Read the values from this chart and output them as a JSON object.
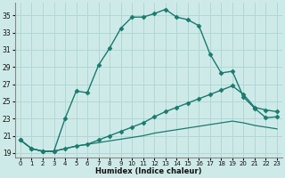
{
  "title": "",
  "xlabel": "Humidex (Indice chaleur)",
  "ylabel": "",
  "bg_color": "#ceeae8",
  "grid_color": "#b0d8d5",
  "line_color": "#1a7a6e",
  "xlim": [
    -0.5,
    23.5
  ],
  "ylim": [
    18.5,
    36.5
  ],
  "xticks": [
    0,
    1,
    2,
    3,
    4,
    5,
    6,
    7,
    8,
    9,
    10,
    11,
    12,
    13,
    14,
    15,
    16,
    17,
    18,
    19,
    20,
    21,
    22,
    23
  ],
  "yticks": [
    19,
    21,
    23,
    25,
    27,
    29,
    31,
    33,
    35
  ],
  "series": [
    {
      "x": [
        0,
        1,
        2,
        3,
        4,
        5,
        6,
        7,
        8,
        9,
        10,
        11,
        12,
        13,
        14,
        15,
        16,
        17,
        18,
        19,
        20,
        21,
        22,
        23
      ],
      "y": [
        20.5,
        19.5,
        19.2,
        19.2,
        23.0,
        26.2,
        26.0,
        29.2,
        31.2,
        33.5,
        34.8,
        34.8,
        35.2,
        35.7,
        34.8,
        34.5,
        33.8,
        30.5,
        28.3,
        28.5,
        25.5,
        24.2,
        23.1,
        23.2
      ],
      "marker": "D",
      "markersize": 2.5,
      "linewidth": 1.0
    },
    {
      "x": [
        0,
        1,
        2,
        3,
        4,
        5,
        6,
        7,
        8,
        9,
        10,
        11,
        12,
        13,
        14,
        15,
        16,
        17,
        18,
        19,
        20,
        21,
        22,
        23
      ],
      "y": [
        20.5,
        19.5,
        19.2,
        19.2,
        19.5,
        19.8,
        20.0,
        20.5,
        21.0,
        21.5,
        22.0,
        22.5,
        23.2,
        23.8,
        24.3,
        24.8,
        25.3,
        25.8,
        26.3,
        26.8,
        25.8,
        24.3,
        24.0,
        23.8
      ],
      "marker": "D",
      "markersize": 2.5,
      "linewidth": 1.0
    },
    {
      "x": [
        0,
        1,
        2,
        3,
        4,
        5,
        6,
        7,
        8,
        9,
        10,
        11,
        12,
        13,
        14,
        15,
        16,
        17,
        18,
        19,
        20,
        21,
        22,
        23
      ],
      "y": [
        20.5,
        19.5,
        19.2,
        19.2,
        19.5,
        19.8,
        20.0,
        20.2,
        20.4,
        20.6,
        20.8,
        21.0,
        21.3,
        21.5,
        21.7,
        21.9,
        22.1,
        22.3,
        22.5,
        22.7,
        22.5,
        22.2,
        22.0,
        21.8
      ],
      "marker": null,
      "markersize": 0,
      "linewidth": 0.9
    }
  ]
}
